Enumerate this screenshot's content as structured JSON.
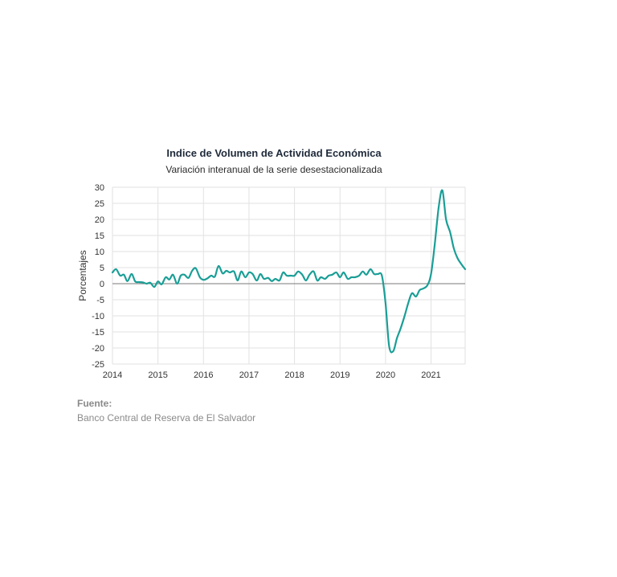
{
  "chart_data": {
    "type": "line",
    "title": "Indice de Volumen de  Actividad Económica",
    "subtitle": "Variación interanual de la serie desestacionalizada",
    "ylabel": "Porcentajes",
    "xlabel": "",
    "ylim": [
      -25,
      30
    ],
    "yticks": [
      30,
      25,
      20,
      15,
      10,
      5,
      0,
      -5,
      -10,
      -15,
      -20,
      -25
    ],
    "xlim": [
      2014.0,
      2021.75
    ],
    "xticks": [
      "2014",
      "2015",
      "2016",
      "2017",
      "2018",
      "2019",
      "2020",
      "2021"
    ],
    "grid": true,
    "legend": "none",
    "line_color": "#1a9e96",
    "series": [
      {
        "x": [
          2014.0,
          2014.08,
          2014.17,
          2014.25,
          2014.33,
          2014.42,
          2014.5,
          2014.58,
          2014.67,
          2014.75,
          2014.83,
          2014.92,
          2015.0,
          2015.08,
          2015.17,
          2015.25,
          2015.33,
          2015.42,
          2015.5,
          2015.58,
          2015.67,
          2015.75,
          2015.83,
          2015.92,
          2016.0,
          2016.08,
          2016.17,
          2016.25,
          2016.33,
          2016.42,
          2016.5,
          2016.58,
          2016.67,
          2016.75,
          2016.83,
          2016.92,
          2017.0,
          2017.08,
          2017.17,
          2017.25,
          2017.33,
          2017.42,
          2017.5,
          2017.58,
          2017.67,
          2017.75,
          2017.83,
          2017.92,
          2018.0,
          2018.08,
          2018.17,
          2018.25,
          2018.33,
          2018.42,
          2018.5,
          2018.58,
          2018.67,
          2018.75,
          2018.83,
          2018.92,
          2019.0,
          2019.08,
          2019.17,
          2019.25,
          2019.33,
          2019.42,
          2019.5,
          2019.58,
          2019.67,
          2019.75,
          2019.83,
          2019.92,
          2020.0,
          2020.08,
          2020.17,
          2020.25,
          2020.33,
          2020.42,
          2020.5,
          2020.58,
          2020.67,
          2020.75,
          2020.83,
          2020.92,
          2021.0,
          2021.08,
          2021.17,
          2021.25,
          2021.33,
          2021.42,
          2021.5,
          2021.58,
          2021.67,
          2021.75
        ],
        "y": [
          3.5,
          4.5,
          2.5,
          2.8,
          0.8,
          3.0,
          0.7,
          0.5,
          0.4,
          0.0,
          0.3,
          -1.0,
          0.7,
          -0.2,
          2.0,
          1.3,
          2.8,
          0.0,
          2.5,
          2.8,
          1.8,
          4.0,
          4.8,
          2.0,
          1.2,
          1.6,
          2.5,
          2.2,
          5.5,
          3.2,
          4.0,
          3.5,
          3.8,
          1.0,
          3.8,
          2.0,
          3.5,
          3.0,
          1.0,
          3.0,
          1.5,
          1.8,
          0.8,
          1.5,
          1.0,
          3.5,
          2.5,
          2.5,
          2.5,
          3.8,
          2.8,
          1.0,
          2.8,
          3.8,
          1.0,
          2.0,
          1.5,
          2.5,
          2.8,
          3.5,
          2.0,
          3.5,
          1.5,
          2.0,
          2.0,
          2.5,
          3.8,
          2.8,
          4.5,
          3.0,
          3.0,
          2.5,
          -6.0,
          -19.5,
          -21.0,
          -17.0,
          -14.0,
          -10.0,
          -6.0,
          -3.0,
          -4.0,
          -2.0,
          -1.5,
          -0.5,
          3.0,
          12.0,
          24.0,
          29.0,
          20.0,
          16.0,
          11.0,
          8.0,
          6.0,
          4.5
        ]
      }
    ]
  },
  "source": {
    "label": "Fuente:",
    "text": "Banco Central de Reserva de El Salvador"
  }
}
